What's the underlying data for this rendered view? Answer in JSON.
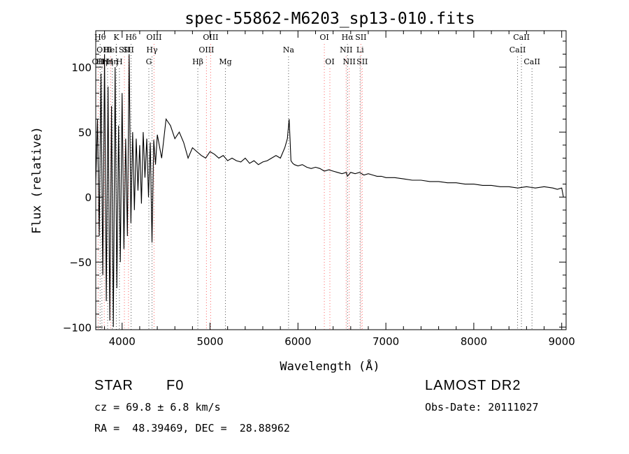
{
  "chart_data": {
    "type": "line",
    "title": "spec-55862-M6203_sp13-010.fits",
    "xlabel": "Wavelength (Å)",
    "ylabel": "Flux (relative)",
    "xlim": [
      3700,
      9050
    ],
    "ylim": [
      -102,
      128
    ],
    "x_ticks": [
      4000,
      5000,
      6000,
      7000,
      8000,
      9000
    ],
    "x_tick_labels": [
      "4000",
      "5000",
      "6000",
      "7000",
      "8000",
      "9000"
    ],
    "y_ticks": [
      -100,
      -50,
      0,
      50,
      100
    ],
    "y_tick_labels": [
      "−100",
      "−50",
      "0",
      "50",
      "100"
    ],
    "grid": false,
    "series": [
      {
        "x": [
          3700,
          3720,
          3740,
          3760,
          3780,
          3800,
          3820,
          3840,
          3860,
          3880,
          3900,
          3920,
          3940,
          3960,
          3980,
          4000,
          4020,
          4040,
          4060,
          4080,
          4100,
          4120,
          4140,
          4160,
          4180,
          4200,
          4220,
          4240,
          4260,
          4280,
          4300,
          4320,
          4340,
          4360,
          4380,
          4400,
          4450,
          4500,
          4550,
          4600,
          4650,
          4700,
          4750,
          4800,
          4850,
          4900,
          4950,
          5000,
          5050,
          5100,
          5150,
          5200,
          5250,
          5300,
          5350,
          5400,
          5450,
          5500,
          5550,
          5600,
          5650,
          5700,
          5750,
          5800,
          5850,
          5880,
          5900,
          5910,
          5920,
          5940,
          5960,
          6000,
          6050,
          6100,
          6150,
          6200,
          6250,
          6300,
          6350,
          6400,
          6450,
          6500,
          6550,
          6563,
          6600,
          6650,
          6700,
          6750,
          6800,
          6850,
          6900,
          6950,
          7000,
          7100,
          7200,
          7300,
          7400,
          7500,
          7600,
          7700,
          7800,
          7900,
          8000,
          8100,
          8200,
          8300,
          8400,
          8500,
          8600,
          8700,
          8800,
          8900,
          8950,
          9000,
          9020
        ],
        "y": [
          10,
          60,
          -30,
          95,
          -60,
          110,
          -80,
          85,
          -95,
          70,
          -100,
          100,
          -70,
          55,
          -50,
          80,
          -40,
          45,
          -30,
          110,
          -20,
          50,
          -10,
          45,
          5,
          40,
          -5,
          50,
          15,
          45,
          0,
          42,
          -35,
          44,
          25,
          48,
          30,
          60,
          55,
          45,
          50,
          42,
          30,
          38,
          35,
          32,
          30,
          35,
          33,
          30,
          32,
          28,
          30,
          28,
          27,
          30,
          26,
          28,
          25,
          27,
          28,
          30,
          32,
          30,
          38,
          45,
          60,
          45,
          28,
          26,
          25,
          24,
          25,
          23,
          22,
          23,
          22,
          20,
          21,
          20,
          19,
          18,
          19,
          16,
          19,
          18,
          19,
          17,
          18,
          17,
          16,
          16,
          15,
          15,
          14,
          13,
          13,
          12,
          12,
          11,
          11,
          10,
          10,
          9,
          9,
          8,
          8,
          7,
          8,
          7,
          8,
          7,
          6,
          7,
          0
        ]
      }
    ],
    "line_markers": [
      {
        "x": 3727,
        "label": "OII",
        "color": "#ff6666",
        "row": 2
      },
      {
        "x": 3750,
        "label": "Hθ",
        "color": "#555555",
        "row": 0
      },
      {
        "x": 3770,
        "label": "Hη",
        "color": "#555555",
        "row": 2
      },
      {
        "x": 3797,
        "label": "OIII",
        "color": "#ff6666",
        "row": 1
      },
      {
        "x": 3835,
        "label": "Hη",
        "color": "#555555",
        "row": 2
      },
      {
        "x": 3869,
        "label": "HeI",
        "color": "#ff6666",
        "row": 1
      },
      {
        "x": 3889,
        "label": "Hη",
        "color": "#555555",
        "row": 2
      },
      {
        "x": 3934,
        "label": "K",
        "color": "#555555",
        "row": 0
      },
      {
        "x": 3969,
        "label": "H",
        "color": "#555555",
        "row": 2
      },
      {
        "x": 4026,
        "label": "SII",
        "color": "#ff6666",
        "row": 1
      },
      {
        "x": 4072,
        "label": "SII",
        "color": "#ff6666",
        "row": 1
      },
      {
        "x": 4102,
        "label": "Hδ",
        "color": "#555555",
        "row": 0
      },
      {
        "x": 4304,
        "label": "G",
        "color": "#555555",
        "row": 2
      },
      {
        "x": 4340,
        "label": "Hγ",
        "color": "#555555",
        "row": 1
      },
      {
        "x": 4363,
        "label": "OIII",
        "color": "#ff6666",
        "row": 0
      },
      {
        "x": 4861,
        "label": "Hβ",
        "color": "#555555",
        "row": 2
      },
      {
        "x": 4959,
        "label": "OIII",
        "color": "#ff6666",
        "row": 1
      },
      {
        "x": 5007,
        "label": "OIII",
        "color": "#ff6666",
        "row": 0
      },
      {
        "x": 5175,
        "label": "Mg",
        "color": "#555555",
        "row": 2
      },
      {
        "x": 5893,
        "label": "Na",
        "color": "#555555",
        "row": 1
      },
      {
        "x": 6300,
        "label": "OI",
        "color": "#ff6666",
        "row": 0
      },
      {
        "x": 6363,
        "label": "OI",
        "color": "#ff6666",
        "row": 2
      },
      {
        "x": 6548,
        "label": "NII",
        "color": "#ff6666",
        "row": 1
      },
      {
        "x": 6563,
        "label": "Hα",
        "color": "#555555",
        "row": 0
      },
      {
        "x": 6583,
        "label": "NII",
        "color": "#ff6666",
        "row": 2
      },
      {
        "x": 6707,
        "label": "Li",
        "color": "#555555",
        "row": 1
      },
      {
        "x": 6716,
        "label": "SII",
        "color": "#ff6666",
        "row": 0
      },
      {
        "x": 6731,
        "label": "SII",
        "color": "#ff6666",
        "row": 2
      },
      {
        "x": 8498,
        "label": "CaII",
        "color": "#555555",
        "row": 1
      },
      {
        "x": 8542,
        "label": "CaII",
        "color": "#555555",
        "row": 0
      },
      {
        "x": 8662,
        "label": "CaII",
        "color": "#555555",
        "row": 2
      }
    ]
  },
  "info": {
    "object_class": "STAR",
    "subclass": "F0",
    "redshift": "cz = 69.8 ± 6.8 km/s",
    "coords": "RA =  48.39469, DEC =  28.88962",
    "survey": "LAMOST DR2",
    "obs_date": "Obs-Date: 20111027"
  }
}
